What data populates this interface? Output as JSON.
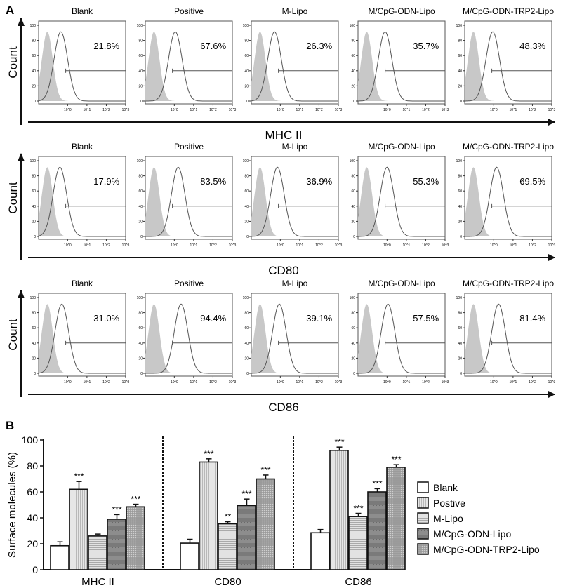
{
  "panel_a": {
    "label": "A",
    "y_axis_label": "Count",
    "groups": [
      "Blank",
      "Positive",
      "M-Lipo",
      "M/CpG-ODN-Lipo",
      "M/CpG-ODN-TRP2-Lipo"
    ],
    "y_ticks": [
      "0",
      "20",
      "40",
      "60",
      "80",
      "100"
    ],
    "x_ticks": [
      "10^0",
      "10^1",
      "10^2",
      "10^3"
    ],
    "rows": [
      {
        "marker": "MHC II",
        "percentages": [
          "21.8%",
          "67.6%",
          "26.3%",
          "35.7%",
          "48.3%"
        ],
        "peak_log": [
          -0.35,
          0.05,
          -0.3,
          -0.1,
          -0.05
        ]
      },
      {
        "marker": "CD80",
        "percentages": [
          "17.9%",
          "83.5%",
          "36.9%",
          "55.3%",
          "69.5%"
        ],
        "peak_log": [
          -0.4,
          0.2,
          -0.15,
          0.0,
          0.15
        ]
      },
      {
        "marker": "CD86",
        "percentages": [
          "31.0%",
          "94.4%",
          "39.1%",
          "57.5%",
          "81.4%"
        ],
        "peak_log": [
          -0.3,
          0.35,
          -0.05,
          0.05,
          0.25
        ]
      }
    ]
  },
  "chart_data": {
    "type": "bar",
    "label": "B",
    "title": "",
    "xlabel": "",
    "ylabel": "Surface molecules (%)",
    "ylim": [
      0,
      100
    ],
    "yticks": [
      0,
      20,
      40,
      60,
      80,
      100
    ],
    "categories": [
      "MHC II",
      "CD80",
      "CD86"
    ],
    "legend_position": "right",
    "series": [
      {
        "name": "Blank",
        "values": [
          18.5,
          20.5,
          28.5
        ],
        "errors": [
          3,
          3,
          2.5
        ],
        "significance": [
          "",
          "",
          ""
        ]
      },
      {
        "name": "Postive",
        "values": [
          62,
          83,
          92
        ],
        "errors": [
          6,
          2.5,
          2.5
        ],
        "significance": [
          "***",
          "***",
          "***"
        ]
      },
      {
        "name": "M-Lipo",
        "values": [
          26,
          35.5,
          41
        ],
        "errors": [
          1.5,
          1.5,
          2.5
        ],
        "significance": [
          "",
          "**",
          "***"
        ]
      },
      {
        "name": "M/CpG-ODN-Lipo",
        "values": [
          39,
          49.5,
          60
        ],
        "errors": [
          3.5,
          5,
          2.5
        ],
        "significance": [
          "***",
          "***",
          "***"
        ]
      },
      {
        "name": "M/CpG-ODN-TRP2-Lipo",
        "values": [
          48.5,
          70,
          79
        ],
        "errors": [
          2,
          3,
          2
        ],
        "significance": [
          "***",
          "***",
          "***"
        ]
      }
    ]
  }
}
